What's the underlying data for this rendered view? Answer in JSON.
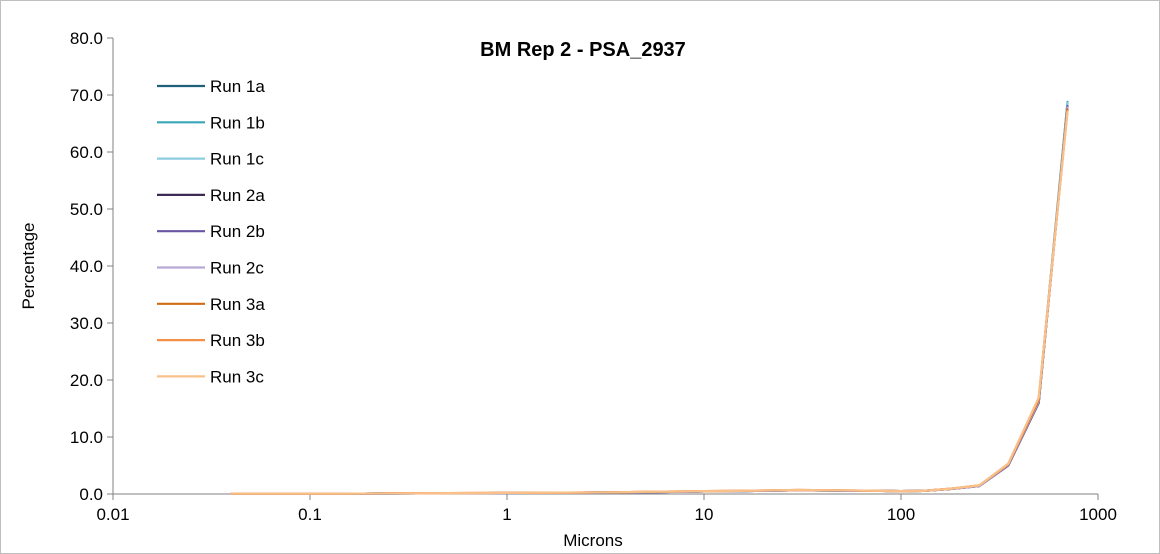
{
  "chart_data": {
    "type": "line",
    "title": "BM Rep 2 - PSA_2937",
    "xlabel": "Microns",
    "ylabel": "Percentage",
    "x_scale": "log",
    "xlim": [
      0.01,
      1000
    ],
    "ylim": [
      0,
      80
    ],
    "x_ticks": [
      0.01,
      0.1,
      1,
      10,
      100,
      1000
    ],
    "x_tick_labels": [
      "0.01",
      "0.1",
      "1",
      "10",
      "100",
      "1000"
    ],
    "y_ticks": [
      0,
      10,
      20,
      30,
      40,
      50,
      60,
      70,
      80
    ],
    "y_tick_labels": [
      "0.0",
      "10.0",
      "20.0",
      "30.0",
      "40.0",
      "50.0",
      "60.0",
      "70.0",
      "80.0"
    ],
    "grid": false,
    "legend_position": "top-left",
    "x": [
      0.04,
      0.08,
      0.15,
      0.25,
      0.5,
      1,
      2,
      3.5,
      5,
      8,
      10,
      15,
      22,
      30,
      50,
      80,
      100,
      130,
      180,
      250,
      350,
      500,
      700
    ],
    "series": [
      {
        "name": "Run 1a",
        "color": "#1f5f7a",
        "values": [
          0.05,
          0.05,
          0.05,
          0.08,
          0.12,
          0.18,
          0.22,
          0.28,
          0.32,
          0.38,
          0.45,
          0.5,
          0.6,
          0.65,
          0.6,
          0.55,
          0.5,
          0.55,
          0.9,
          1.4,
          5.0,
          16.0,
          68.5
        ]
      },
      {
        "name": "Run 1b",
        "color": "#3aa6b9",
        "values": [
          0.05,
          0.05,
          0.05,
          0.08,
          0.12,
          0.18,
          0.22,
          0.28,
          0.32,
          0.38,
          0.45,
          0.5,
          0.6,
          0.65,
          0.6,
          0.55,
          0.5,
          0.55,
          0.9,
          1.4,
          5.1,
          16.2,
          68.8
        ]
      },
      {
        "name": "Run 1c",
        "color": "#8ecde0",
        "values": [
          0.05,
          0.05,
          0.05,
          0.08,
          0.12,
          0.18,
          0.22,
          0.28,
          0.32,
          0.38,
          0.45,
          0.5,
          0.6,
          0.65,
          0.6,
          0.55,
          0.5,
          0.55,
          0.9,
          1.4,
          5.1,
          16.3,
          68.6
        ]
      },
      {
        "name": "Run 2a",
        "color": "#3d2b56",
        "values": [
          0.05,
          0.05,
          0.05,
          0.08,
          0.12,
          0.18,
          0.22,
          0.28,
          0.32,
          0.38,
          0.45,
          0.5,
          0.6,
          0.65,
          0.6,
          0.55,
          0.5,
          0.55,
          0.9,
          1.4,
          5.0,
          16.0,
          68.0
        ]
      },
      {
        "name": "Run 2b",
        "color": "#6a55a3",
        "values": [
          0.05,
          0.05,
          0.05,
          0.08,
          0.12,
          0.18,
          0.22,
          0.28,
          0.32,
          0.38,
          0.45,
          0.5,
          0.6,
          0.65,
          0.6,
          0.55,
          0.5,
          0.55,
          0.9,
          1.4,
          5.0,
          16.1,
          67.9
        ]
      },
      {
        "name": "Run 2c",
        "color": "#b9a9d6",
        "values": [
          0.05,
          0.05,
          0.05,
          0.08,
          0.12,
          0.18,
          0.22,
          0.28,
          0.32,
          0.38,
          0.45,
          0.5,
          0.6,
          0.65,
          0.6,
          0.55,
          0.5,
          0.55,
          0.9,
          1.4,
          5.1,
          16.2,
          67.8
        ]
      },
      {
        "name": "Run 3a",
        "color": "#d26b17",
        "values": [
          0.05,
          0.05,
          0.05,
          0.1,
          0.15,
          0.2,
          0.25,
          0.3,
          0.38,
          0.45,
          0.5,
          0.55,
          0.65,
          0.7,
          0.65,
          0.55,
          0.5,
          0.55,
          0.95,
          1.5,
          5.2,
          16.5,
          67.5
        ]
      },
      {
        "name": "Run 3b",
        "color": "#f2904a",
        "values": [
          0.05,
          0.05,
          0.05,
          0.1,
          0.15,
          0.2,
          0.25,
          0.3,
          0.38,
          0.45,
          0.5,
          0.55,
          0.65,
          0.7,
          0.65,
          0.55,
          0.5,
          0.55,
          0.95,
          1.5,
          5.3,
          16.8,
          67.2
        ]
      },
      {
        "name": "Run 3c",
        "color": "#f9c08a",
        "values": [
          0.05,
          0.05,
          0.05,
          0.1,
          0.15,
          0.2,
          0.25,
          0.3,
          0.38,
          0.45,
          0.5,
          0.55,
          0.65,
          0.7,
          0.65,
          0.55,
          0.5,
          0.55,
          0.95,
          1.5,
          5.3,
          16.9,
          67.0
        ]
      }
    ]
  }
}
